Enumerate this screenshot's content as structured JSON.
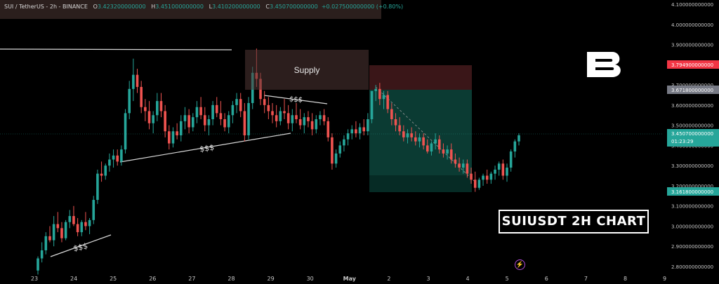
{
  "header": {
    "symbol": "SUI / TetherUS - 2h - BINANCE",
    "o_label": "O",
    "o_value": "3.423200000000",
    "h_label": "H",
    "h_value": "3.451000000000",
    "l_label": "L",
    "l_value": "3.410200000000",
    "c_label": "C",
    "c_value": "3.450700000000",
    "change": "+0.027500000000 (+0.80%)"
  },
  "title_box": "SUIUSDT 2H CHART",
  "supply_label": "Supply",
  "liquidity_labels": [
    "$$$",
    "$$$",
    "$$$"
  ],
  "logo_icon": "brand-b-logo-icon",
  "colors": {
    "up": "#26a69a",
    "down": "#ef5350",
    "stop_zone": "#3a1618",
    "target_zone": "#0b3b33",
    "price_tag": "#26a69a",
    "stop_tag": "#f23645"
  },
  "chart_data": {
    "type": "candlestick",
    "title": "SUIUSDT 2H CHART",
    "ylim": [
      2.75,
      4.1
    ],
    "y_ticks": [
      "4.100000000000",
      "4.000000000000",
      "3.900000000000",
      "3.800000000000",
      "3.700000000000",
      "3.600000000000",
      "3.500000000000",
      "3.400000000000",
      "3.300000000000",
      "3.200000000000",
      "3.100000000000",
      "3.000000000000",
      "2.900000000000",
      "2.800000000000"
    ],
    "x_ticks": [
      "23",
      "24",
      "25",
      "26",
      "27",
      "28",
      "29",
      "30",
      "May",
      "2",
      "3",
      "4",
      "5",
      "6",
      "7",
      "8",
      "9"
    ],
    "price_tags": {
      "stop": "3.794900000000",
      "entry": "3.671800000000",
      "current": "3.450700000000",
      "countdown": "01:23:29",
      "target": "3.161800000000"
    },
    "candles": [
      [
        2.78,
        2.85,
        2.76,
        2.84
      ],
      [
        2.84,
        2.92,
        2.82,
        2.88
      ],
      [
        2.88,
        2.97,
        2.86,
        2.95
      ],
      [
        2.95,
        3.0,
        2.92,
        2.93
      ],
      [
        2.93,
        3.05,
        2.9,
        3.01
      ],
      [
        3.01,
        3.07,
        2.97,
        2.99
      ],
      [
        2.99,
        3.02,
        2.92,
        2.94
      ],
      [
        2.94,
        3.03,
        2.93,
        3.02
      ],
      [
        3.02,
        3.08,
        2.99,
        3.05
      ],
      [
        3.05,
        3.1,
        3.0,
        3.01
      ],
      [
        3.01,
        3.04,
        2.95,
        2.97
      ],
      [
        2.97,
        3.03,
        2.95,
        3.02
      ],
      [
        3.02,
        3.07,
        2.98,
        3.0
      ],
      [
        3.0,
        3.04,
        2.96,
        3.03
      ],
      [
        3.03,
        3.15,
        3.01,
        3.13
      ],
      [
        3.13,
        3.28,
        3.11,
        3.26
      ],
      [
        3.26,
        3.32,
        3.22,
        3.25
      ],
      [
        3.25,
        3.31,
        3.23,
        3.3
      ],
      [
        3.3,
        3.36,
        3.27,
        3.33
      ],
      [
        3.33,
        3.38,
        3.29,
        3.35
      ],
      [
        3.35,
        3.38,
        3.3,
        3.32
      ],
      [
        3.32,
        3.4,
        3.3,
        3.38
      ],
      [
        3.38,
        3.58,
        3.36,
        3.56
      ],
      [
        3.56,
        3.72,
        3.53,
        3.68
      ],
      [
        3.68,
        3.83,
        3.62,
        3.75
      ],
      [
        3.75,
        3.78,
        3.66,
        3.69
      ],
      [
        3.69,
        3.72,
        3.56,
        3.59
      ],
      [
        3.59,
        3.63,
        3.52,
        3.57
      ],
      [
        3.57,
        3.62,
        3.48,
        3.51
      ],
      [
        3.51,
        3.57,
        3.46,
        3.55
      ],
      [
        3.55,
        3.66,
        3.52,
        3.62
      ],
      [
        3.62,
        3.66,
        3.54,
        3.57
      ],
      [
        3.57,
        3.6,
        3.44,
        3.47
      ],
      [
        3.47,
        3.5,
        3.38,
        3.41
      ],
      [
        3.41,
        3.49,
        3.39,
        3.47
      ],
      [
        3.47,
        3.51,
        3.43,
        3.45
      ],
      [
        3.45,
        3.55,
        3.42,
        3.52
      ],
      [
        3.52,
        3.59,
        3.48,
        3.55
      ],
      [
        3.55,
        3.58,
        3.46,
        3.49
      ],
      [
        3.49,
        3.56,
        3.47,
        3.54
      ],
      [
        3.54,
        3.62,
        3.51,
        3.59
      ],
      [
        3.59,
        3.64,
        3.53,
        3.55
      ],
      [
        3.55,
        3.59,
        3.47,
        3.5
      ],
      [
        3.5,
        3.55,
        3.45,
        3.53
      ],
      [
        3.53,
        3.62,
        3.5,
        3.6
      ],
      [
        3.6,
        3.64,
        3.54,
        3.56
      ],
      [
        3.56,
        3.62,
        3.5,
        3.53
      ],
      [
        3.53,
        3.56,
        3.47,
        3.49
      ],
      [
        3.49,
        3.57,
        3.46,
        3.55
      ],
      [
        3.55,
        3.62,
        3.51,
        3.6
      ],
      [
        3.6,
        3.66,
        3.56,
        3.63
      ],
      [
        3.63,
        3.66,
        3.54,
        3.57
      ],
      [
        3.57,
        3.61,
        3.42,
        3.45
      ],
      [
        3.45,
        3.64,
        3.43,
        3.61
      ],
      [
        3.61,
        3.79,
        3.58,
        3.76
      ],
      [
        3.76,
        3.88,
        3.69,
        3.73
      ],
      [
        3.73,
        3.76,
        3.6,
        3.63
      ],
      [
        3.63,
        3.67,
        3.56,
        3.6
      ],
      [
        3.6,
        3.64,
        3.53,
        3.57
      ],
      [
        3.57,
        3.61,
        3.51,
        3.55
      ],
      [
        3.55,
        3.6,
        3.49,
        3.52
      ],
      [
        3.52,
        3.59,
        3.5,
        3.57
      ],
      [
        3.57,
        3.63,
        3.53,
        3.56
      ],
      [
        3.56,
        3.6,
        3.48,
        3.51
      ],
      [
        3.51,
        3.58,
        3.47,
        3.55
      ],
      [
        3.55,
        3.61,
        3.51,
        3.53
      ],
      [
        3.53,
        3.58,
        3.48,
        3.5
      ],
      [
        3.5,
        3.56,
        3.46,
        3.54
      ],
      [
        3.54,
        3.57,
        3.49,
        3.52
      ],
      [
        3.52,
        3.56,
        3.45,
        3.48
      ],
      [
        3.48,
        3.55,
        3.46,
        3.53
      ],
      [
        3.53,
        3.57,
        3.5,
        3.55
      ],
      [
        3.55,
        3.58,
        3.5,
        3.52
      ],
      [
        3.52,
        3.54,
        3.42,
        3.44
      ],
      [
        3.44,
        3.46,
        3.28,
        3.31
      ],
      [
        3.31,
        3.38,
        3.29,
        3.36
      ],
      [
        3.36,
        3.42,
        3.34,
        3.4
      ],
      [
        3.4,
        3.45,
        3.37,
        3.43
      ],
      [
        3.43,
        3.48,
        3.4,
        3.46
      ],
      [
        3.46,
        3.5,
        3.43,
        3.48
      ],
      [
        3.48,
        3.52,
        3.44,
        3.46
      ],
      [
        3.46,
        3.51,
        3.43,
        3.49
      ],
      [
        3.49,
        3.53,
        3.45,
        3.47
      ],
      [
        3.47,
        3.56,
        3.45,
        3.53
      ],
      [
        3.53,
        3.66,
        3.51,
        3.67
      ],
      [
        3.67,
        3.7,
        3.62,
        3.68
      ],
      [
        3.68,
        3.71,
        3.6,
        3.63
      ],
      [
        3.63,
        3.67,
        3.58,
        3.65
      ],
      [
        3.65,
        3.67,
        3.56,
        3.58
      ],
      [
        3.58,
        3.61,
        3.5,
        3.53
      ],
      [
        3.53,
        3.56,
        3.47,
        3.5
      ],
      [
        3.5,
        3.54,
        3.45,
        3.47
      ],
      [
        3.47,
        3.5,
        3.42,
        3.44
      ],
      [
        3.44,
        3.48,
        3.41,
        3.46
      ],
      [
        3.46,
        3.49,
        3.42,
        3.44
      ],
      [
        3.44,
        3.47,
        3.4,
        3.42
      ],
      [
        3.42,
        3.46,
        3.39,
        3.44
      ],
      [
        3.44,
        3.46,
        3.38,
        3.4
      ],
      [
        3.4,
        3.43,
        3.36,
        3.37
      ],
      [
        3.37,
        3.42,
        3.35,
        3.41
      ],
      [
        3.41,
        3.46,
        3.38,
        3.43
      ],
      [
        3.43,
        3.45,
        3.36,
        3.38
      ],
      [
        3.38,
        3.41,
        3.34,
        3.36
      ],
      [
        3.36,
        3.4,
        3.33,
        3.38
      ],
      [
        3.38,
        3.41,
        3.31,
        3.33
      ],
      [
        3.33,
        3.36,
        3.29,
        3.31
      ],
      [
        3.31,
        3.34,
        3.27,
        3.29
      ],
      [
        3.29,
        3.33,
        3.26,
        3.31
      ],
      [
        3.31,
        3.33,
        3.24,
        3.26
      ],
      [
        3.26,
        3.29,
        3.21,
        3.23
      ],
      [
        3.23,
        3.27,
        3.17,
        3.19
      ],
      [
        3.19,
        3.24,
        3.18,
        3.23
      ],
      [
        3.23,
        3.26,
        3.2,
        3.25
      ],
      [
        3.25,
        3.28,
        3.21,
        3.23
      ],
      [
        3.23,
        3.27,
        3.21,
        3.26
      ],
      [
        3.26,
        3.3,
        3.23,
        3.28
      ],
      [
        3.28,
        3.32,
        3.25,
        3.31
      ],
      [
        3.31,
        3.33,
        3.23,
        3.25
      ],
      [
        3.25,
        3.31,
        3.22,
        3.29
      ],
      [
        3.29,
        3.38,
        3.27,
        3.37
      ],
      [
        3.37,
        3.43,
        3.34,
        3.42
      ],
      [
        3.42,
        3.46,
        3.4,
        3.45
      ]
    ]
  }
}
